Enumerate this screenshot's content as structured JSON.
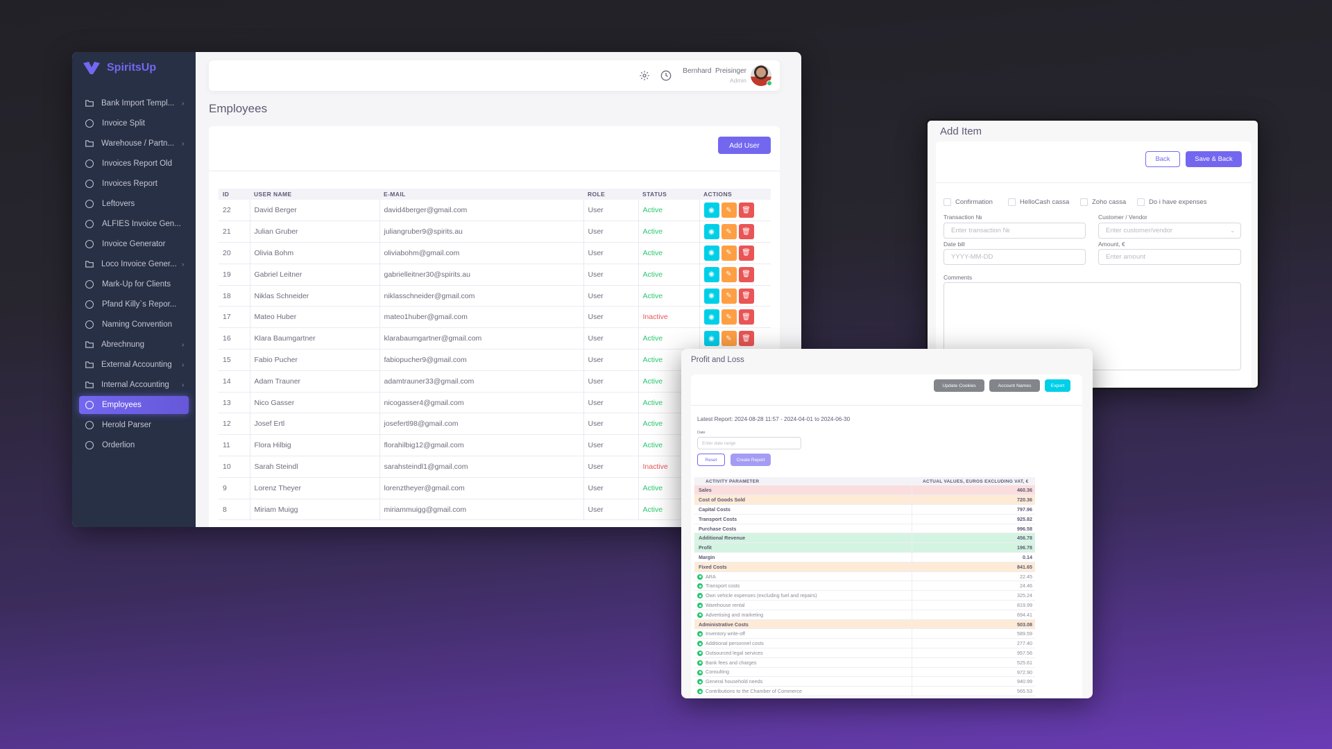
{
  "app": {
    "name": "SpiritsUp"
  },
  "colors": {
    "accent": "#7367f0",
    "sidebar": "#283046",
    "active": "#28c76f",
    "inactive": "#ea5455",
    "view": "#00cfe8",
    "edit": "#ff9f43",
    "delete": "#ea5455"
  },
  "sidebar": {
    "items": [
      {
        "label": "Bank Import Templ...",
        "icon": "folder-icon",
        "chevron": true
      },
      {
        "label": "Invoice Split",
        "icon": "circle-icon"
      },
      {
        "label": "Warehouse / Partn...",
        "icon": "folder-icon",
        "chevron": true
      },
      {
        "label": "Invoices Report Old",
        "icon": "circle-icon"
      },
      {
        "label": "Invoices Report",
        "icon": "circle-icon"
      },
      {
        "label": "Leftovers",
        "icon": "circle-icon"
      },
      {
        "label": "ALFIES Invoice Gen...",
        "icon": "circle-icon"
      },
      {
        "label": "Invoice Generator",
        "icon": "circle-icon"
      },
      {
        "label": "Loco Invoice Gener...",
        "icon": "folder-icon",
        "chevron": true
      },
      {
        "label": "Mark-Up for Clients",
        "icon": "circle-icon"
      },
      {
        "label": "Pfand Killy`s Repor...",
        "icon": "circle-icon"
      },
      {
        "label": "Naming Convention",
        "icon": "circle-icon"
      },
      {
        "label": "Abrechnung",
        "icon": "folder-icon",
        "chevron": true
      },
      {
        "label": "External Accounting",
        "icon": "folder-icon",
        "chevron": true
      },
      {
        "label": "Internal Accounting",
        "icon": "folder-icon",
        "chevron": true
      },
      {
        "label": "Employees",
        "icon": "circle-icon",
        "active": true
      },
      {
        "label": "Herold Parser",
        "icon": "circle-icon"
      },
      {
        "label": "Orderlion",
        "icon": "circle-icon"
      }
    ]
  },
  "header": {
    "user_name": "Bernhard  Preisinger",
    "user_role": "Admin"
  },
  "employees": {
    "title": "Employees",
    "add_user": "Add User",
    "columns": [
      "ID",
      "USER NAME",
      "E-MAIL",
      "ROLE",
      "STATUS",
      "ACTIONS"
    ],
    "rows": [
      {
        "id": "22",
        "name": "David Berger",
        "email": "david4berger@gmail.com",
        "role": "User",
        "status": "Active"
      },
      {
        "id": "21",
        "name": "Julian Gruber",
        "email": "juliangruber9@spirits.au",
        "role": "User",
        "status": "Active"
      },
      {
        "id": "20",
        "name": "Olivia Bohm",
        "email": "oliviabohm@gmail.com",
        "role": "User",
        "status": "Active"
      },
      {
        "id": "19",
        "name": "Gabriel Leitner",
        "email": "gabrielleitner30@spirits.au",
        "role": "User",
        "status": "Active"
      },
      {
        "id": "18",
        "name": "Niklas Schneider",
        "email": "niklasschneider@gmail.com",
        "role": "User",
        "status": "Active"
      },
      {
        "id": "17",
        "name": "Mateo Huber",
        "email": "mateo1huber@gmail.com",
        "role": "User",
        "status": "Inactive"
      },
      {
        "id": "16",
        "name": "Klara Baumgartner",
        "email": "klarabaumgartner@gmail.com",
        "role": "User",
        "status": "Active"
      },
      {
        "id": "15",
        "name": "Fabio Pucher",
        "email": "fabiopucher9@gmail.com",
        "role": "User",
        "status": "Active"
      },
      {
        "id": "14",
        "name": "Adam Trauner",
        "email": "adamtrauner33@gmail.com",
        "role": "User",
        "status": "Active"
      },
      {
        "id": "13",
        "name": "Nico Gasser",
        "email": "nicogasser4@gmail.com",
        "role": "User",
        "status": "Active"
      },
      {
        "id": "12",
        "name": "Josef Ertl",
        "email": "josefertl98@gmail.com",
        "role": "User",
        "status": "Active"
      },
      {
        "id": "11",
        "name": "Flora Hilbig",
        "email": "florahilbig12@gmail.com",
        "role": "User",
        "status": "Active"
      },
      {
        "id": "10",
        "name": "Sarah Steindl",
        "email": "sarahsteindl1@gmail.com",
        "role": "User",
        "status": "Inactive"
      },
      {
        "id": "9",
        "name": "Lorenz Theyer",
        "email": "lorenztheyer@gmail.com",
        "role": "User",
        "status": "Active"
      },
      {
        "id": "8",
        "name": "Miriam Muigg",
        "email": "miriammuigg@gmail.com",
        "role": "User",
        "status": "Active"
      }
    ]
  },
  "add_item": {
    "title": "Add Item",
    "back": "Back",
    "save_back": "Save & Back",
    "checkboxes": [
      "Confirmation",
      "HelloCash cassa",
      "Zoho cassa",
      "Do i have expenses"
    ],
    "transaction_label": "Transaction №",
    "transaction_placeholder": "Enter transaction №",
    "customer_label": "Customer / Vendor",
    "customer_placeholder": "Enter customer/vendor",
    "date_label": "Date bill",
    "date_placeholder": "YYYY-MM-DD",
    "amount_label": "Amount, €",
    "amount_placeholder": "Enter amount",
    "comments_label": "Comments"
  },
  "pl": {
    "title": "Profit and Loss",
    "update_cookies": "Update Cookies",
    "account_names": "Account Names",
    "export": "Export",
    "latest_report": "Latest Report: 2024-08-28 11:57 - 2024-04-01 to 2024-06-30",
    "date_label": "Date",
    "date_placeholder": "Enter date range",
    "reset": "Reset",
    "create_report": "Create Report",
    "columns": [
      "ACTIVITY PARAMETER",
      "ACTUAL VALUES, EUROS EXCLUDING VAT, €"
    ],
    "rows": [
      {
        "label": "Sales",
        "value": "460.36",
        "kind": "main",
        "bg": "#fbdddd"
      },
      {
        "label": "Cost of Goods Sold",
        "value": "720.36",
        "kind": "main",
        "bg": "#fdebd7"
      },
      {
        "label": "Capital Costs",
        "value": "797.96",
        "kind": "main"
      },
      {
        "label": "Transport Costs",
        "value": "925.82",
        "kind": "main"
      },
      {
        "label": "Purchase Costs",
        "value": "996.58",
        "kind": "main"
      },
      {
        "label": "Additional Revenue",
        "value": "456.78",
        "kind": "main",
        "bg": "#d4f4e2"
      },
      {
        "label": "Profit",
        "value": "196.78",
        "kind": "main",
        "bg": "#d4f4e2"
      },
      {
        "label": "Margin",
        "value": "0.14",
        "kind": "main"
      },
      {
        "label": "Fixed Costs",
        "value": "841.65",
        "kind": "main",
        "bg": "#fdebd7"
      },
      {
        "label": "ARA",
        "value": "22.45",
        "kind": "sub"
      },
      {
        "label": "Transport costs",
        "value": "24.46",
        "kind": "sub"
      },
      {
        "label": "Own vehicle expenses (excluding fuel and repairs)",
        "value": "325.24",
        "kind": "sub"
      },
      {
        "label": "Warehouse rental",
        "value": "819.99",
        "kind": "sub"
      },
      {
        "label": "Advertising and marketing",
        "value": "694.41",
        "kind": "sub"
      },
      {
        "label": "Administrative Costs",
        "value": "503.08",
        "kind": "main",
        "bg": "#fdebd7"
      },
      {
        "label": "Inventory write-off",
        "value": "589.59",
        "kind": "sub"
      },
      {
        "label": "Additional personnel costs",
        "value": "277.40",
        "kind": "sub"
      },
      {
        "label": "Outsourced legal services",
        "value": "957.56",
        "kind": "sub"
      },
      {
        "label": "Bank fees and charges",
        "value": "525.61",
        "kind": "sub"
      },
      {
        "label": "Consulting",
        "value": "972.90",
        "kind": "sub"
      },
      {
        "label": "General household needs",
        "value": "940.99",
        "kind": "sub"
      },
      {
        "label": "Contributions to the Chamber of Commerce",
        "value": "565.53",
        "kind": "sub"
      }
    ]
  }
}
